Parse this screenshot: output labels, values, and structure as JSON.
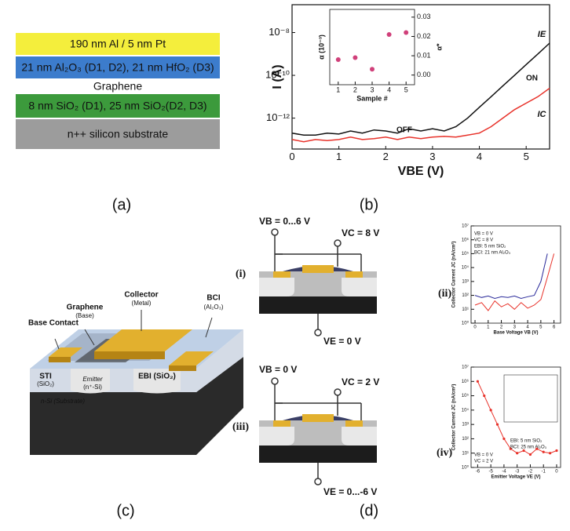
{
  "panel_labels": {
    "a": "(a)",
    "b": "(b)",
    "c": "(c)",
    "d": "(d)"
  },
  "layer_stack": {
    "layers": [
      {
        "text": "190 nm Al / 5 nm Pt",
        "color": "#f4ee3c"
      },
      {
        "text": "21 nm Al₂O₃ (D1, D2), 21 nm HfO₂ (D3)",
        "color": "#3c7ccc"
      },
      {
        "text": "Graphene",
        "color": "#ffffff"
      },
      {
        "text": "8 nm SiO₂ (D1), 25 nm SiO₂(D2, D3)",
        "color": "#3c9a3c"
      },
      {
        "text": "n++ silicon substrate",
        "color": "#9c9c9c"
      }
    ]
  },
  "device": {
    "base_contact": "Base Contact",
    "graphene": "Graphene",
    "graphene_sub": "(Base)",
    "collector": "Collector",
    "collector_sub": "(Metal)",
    "bci": "BCI",
    "bci_sub": "(Al₂O₃)",
    "sti": "STI",
    "sti_sub": "(SiO₂)",
    "emitter": "Emitter",
    "emitter_sub": "(n⁺-Si)",
    "ebi": "EBI (SiO₂)",
    "substrate": "n-Si (Substrate)"
  },
  "circuits": {
    "i": {
      "label": "(i)",
      "vb": "VB = 0...6 V",
      "vc": "VC = 8 V",
      "ve": "VE = 0 V"
    },
    "ii": {
      "label": "(ii)"
    },
    "iii": {
      "label": "(iii)",
      "vb": "VB = 0 V",
      "vc": "VC = 2 V",
      "ve": "VE = 0...-6 V"
    },
    "iv": {
      "label": "(iv)"
    }
  },
  "chart_data": [
    {
      "type": "line",
      "y_label": "I (A)",
      "x_label": "VBE (V)",
      "log_y": true,
      "xlim": [
        0,
        5.5
      ],
      "xticks": [
        0,
        1,
        2,
        3,
        4,
        5
      ],
      "ylim": [
        3.6e-14,
        2e-07
      ],
      "yticks": [
        {
          "value": 1e-12,
          "label": "10⁻¹²"
        },
        {
          "value": 1e-10,
          "label": "10⁻¹⁰"
        },
        {
          "value": 1e-08,
          "label": "10⁻⁸"
        }
      ],
      "x": [
        0,
        0.25,
        0.5,
        0.75,
        1,
        1.25,
        1.5,
        1.75,
        2,
        2.25,
        2.5,
        2.75,
        3,
        3.25,
        3.5,
        3.75,
        4,
        4.25,
        4.5,
        4.75,
        5,
        5.25,
        5.5
      ],
      "series": [
        {
          "name": "IE",
          "color": "#111111",
          "values": [
            2e-13,
            1.6e-13,
            1.6e-13,
            2e-13,
            1.8e-13,
            2.5e-13,
            2e-13,
            2.8e-13,
            2.5e-13,
            2e-13,
            3.2e-13,
            2.5e-13,
            3.2e-13,
            2.5e-13,
            4e-13,
            1e-12,
            3.2e-12,
            1e-11,
            3.2e-11,
            1e-10,
            3.2e-10,
            1e-09,
            3.2e-09
          ]
        },
        {
          "name": "IC",
          "color": "#e8322a",
          "values": [
            1e-13,
            7.9e-14,
            1e-13,
            8.9e-14,
            1e-13,
            1.3e-13,
            1e-13,
            1.1e-13,
            1.3e-13,
            1e-13,
            1.3e-13,
            1.1e-13,
            1.3e-13,
            1.4e-13,
            1.3e-13,
            1.6e-13,
            2e-13,
            4e-13,
            1e-12,
            2.5e-12,
            5e-12,
            1e-11,
            2.5e-11
          ]
        }
      ],
      "annotations": [
        "ON",
        "OFF"
      ]
    },
    {
      "type": "scatter",
      "x_label": "Sample #",
      "y_label": "α (10⁻³)",
      "y2_label": "α*",
      "xlim": [
        0.5,
        5.5
      ],
      "xticks": [
        1,
        2,
        3,
        4,
        5
      ],
      "y2lim": [
        -0.005,
        0.034
      ],
      "y2ticks": [
        {
          "value": 0,
          "label": "0.00"
        },
        {
          "value": 0.01,
          "label": "0.01"
        },
        {
          "value": 0.02,
          "label": "0.02"
        },
        {
          "value": 0.03,
          "label": "0.03"
        }
      ],
      "series": [
        {
          "color": "#d0407a",
          "axis": "y2",
          "x": [
            1,
            2,
            3,
            4,
            5
          ],
          "values": [
            0.008,
            0.009,
            0.003,
            0.021,
            0.022
          ]
        }
      ]
    },
    {
      "type": "line",
      "x_label": "Base Voltage VB (V)",
      "y_label": "Collector Current JC (nA/cm²)",
      "log_y": true,
      "xlim": [
        -0.3,
        6.5
      ],
      "xticks": [
        0,
        1,
        2,
        3,
        4,
        5,
        6
      ],
      "ylim": [
        1,
        10000000
      ],
      "yticks": [
        {
          "value": 1,
          "label": "10⁰"
        },
        {
          "value": 10,
          "label": "10¹"
        },
        {
          "value": 100,
          "label": "10²"
        },
        {
          "value": 1000,
          "label": "10³"
        },
        {
          "value": 10000,
          "label": "10⁴"
        },
        {
          "value": 100000,
          "label": "10⁵"
        },
        {
          "value": 1000000,
          "label": "10⁶"
        },
        {
          "value": 10000000,
          "label": "10⁷"
        }
      ],
      "x": [
        0,
        0.5,
        1,
        1.5,
        2,
        2.5,
        3,
        3.5,
        4,
        4.5,
        5,
        5.5,
        6
      ],
      "series": [
        {
          "color": "#2a2a9a",
          "values": [
            100,
            70,
            90,
            60,
            80,
            70,
            90,
            60,
            80,
            100,
            1000,
            100000,
            null
          ]
        },
        {
          "color": "#e8322a",
          "values": [
            20,
            30,
            8,
            40,
            15,
            25,
            10,
            30,
            12,
            20,
            50,
            2000,
            100000
          ]
        }
      ],
      "annotations": [
        "VB = 0 V",
        "VC = 8 V",
        "EBI: 5 nm SiO₂",
        "BCI: 21 nm Al₂O₃"
      ]
    },
    {
      "type": "line",
      "markers": true,
      "x_label": "Emitter Voltage VE (V)",
      "y_label": "Collector Current JC (nA/cm²)",
      "log_y": true,
      "xlim": [
        -6.5,
        0.3
      ],
      "xticks": [
        -6,
        -5,
        -4,
        -3,
        -2,
        -1,
        0
      ],
      "ylim": [
        1,
        10000000
      ],
      "yticks": [
        {
          "value": 1,
          "label": "10⁰"
        },
        {
          "value": 10,
          "label": "10¹"
        },
        {
          "value": 100,
          "label": "10²"
        },
        {
          "value": 1000,
          "label": "10³"
        },
        {
          "value": 10000,
          "label": "10⁴"
        },
        {
          "value": 100000,
          "label": "10⁵"
        },
        {
          "value": 1000000,
          "label": "10⁶"
        },
        {
          "value": 10000000,
          "label": "10⁷"
        }
      ],
      "x": [
        -6,
        -5.5,
        -5,
        -4.5,
        -4,
        -3.5,
        -3,
        -2.5,
        -2,
        -1.5,
        -1,
        -0.5,
        0
      ],
      "series": [
        {
          "color": "#e8322a",
          "values": [
            1000000,
            100000,
            10000,
            1000,
            100,
            20,
            10,
            15,
            8,
            20,
            12,
            10,
            15
          ]
        }
      ],
      "annotations": [
        "EBI: 5 nm SiO₂",
        "BCI: 25 nm Al₂O₃",
        "VB = 0 V",
        "VC = 2 V"
      ]
    }
  ]
}
